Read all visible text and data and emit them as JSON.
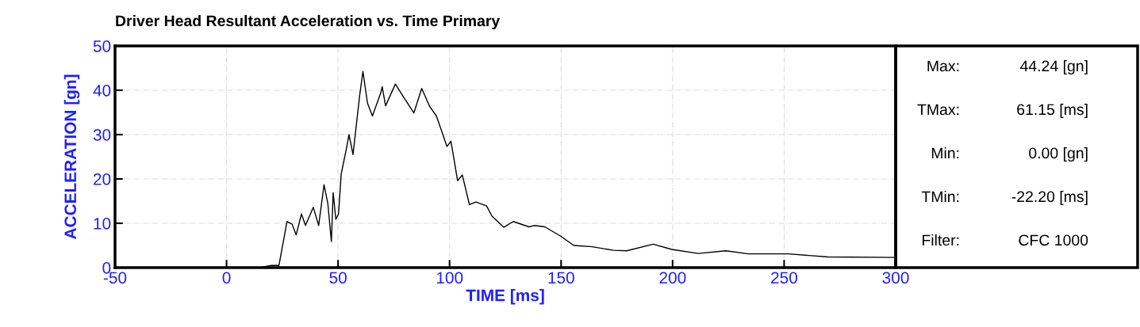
{
  "chart_data": {
    "type": "line",
    "title": "Driver Head Resultant Acceleration vs. Time Primary",
    "xlabel": "TIME [ms]",
    "ylabel": "ACCELERATION [gn]",
    "annotations": [
      "Max:",
      "44.24 [gn]",
      "TMax:",
      "61.15 [ms]",
      "Min:",
      "0.00 [gn]",
      "TMin:",
      "-22.20 [ms]",
      "Filter:",
      "CFC 1000"
    ],
    "xlim": [
      -50,
      300
    ],
    "ylim": [
      0,
      50
    ],
    "xticks": [
      -50,
      0,
      50,
      100,
      150,
      200,
      250,
      300
    ],
    "yticks": [
      0,
      10,
      20,
      30,
      40,
      50
    ],
    "grid": true,
    "line_style": "solid",
    "marker": "none",
    "series": [
      {
        "color": "#000000",
        "x": [
          -50,
          15,
          20,
          23.5,
          24.7,
          27.1,
          29.4,
          31.2,
          33.6,
          35.4,
          38.9,
          41.3,
          43.7,
          45.4,
          47.0,
          47.8,
          49.0,
          50.2,
          51.4,
          53.8,
          54.9,
          56.7,
          59.7,
          61.15,
          63.2,
          65.4,
          69.2,
          69.8,
          71.3,
          75.7,
          79.2,
          84.0,
          87.5,
          91.1,
          94.1,
          97.0,
          98.8,
          100.6,
          103.6,
          105.7,
          108.9,
          111.8,
          116.6,
          119.0,
          124.3,
          128.5,
          135.6,
          137.9,
          142.7,
          149.8,
          155.7,
          164.0,
          173.5,
          179.4,
          191.3,
          199.6,
          211.5,
          223.9,
          234.0,
          251.8,
          269.5,
          299.2
        ],
        "values": [
          0,
          0,
          0.5,
          0.5,
          3.8,
          10.4,
          9.8,
          7.4,
          12.1,
          9.5,
          13.6,
          9.5,
          18.7,
          14.5,
          5.9,
          16.9,
          10.9,
          12.1,
          21.1,
          27.0,
          30.0,
          25.5,
          38.9,
          44.24,
          37.1,
          34.2,
          39.5,
          40.8,
          36.5,
          41.4,
          38.6,
          34.9,
          40.4,
          36.3,
          34.2,
          30.0,
          27.3,
          28.5,
          19.6,
          20.9,
          14.2,
          14.8,
          13.9,
          11.6,
          9.1,
          10.4,
          9.2,
          9.5,
          9.2,
          7.1,
          5.0,
          4.7,
          3.9,
          3.8,
          5.3,
          4.1,
          3.2,
          3.8,
          3.1,
          3.1,
          2.4,
          2.3
        ]
      }
    ]
  }
}
